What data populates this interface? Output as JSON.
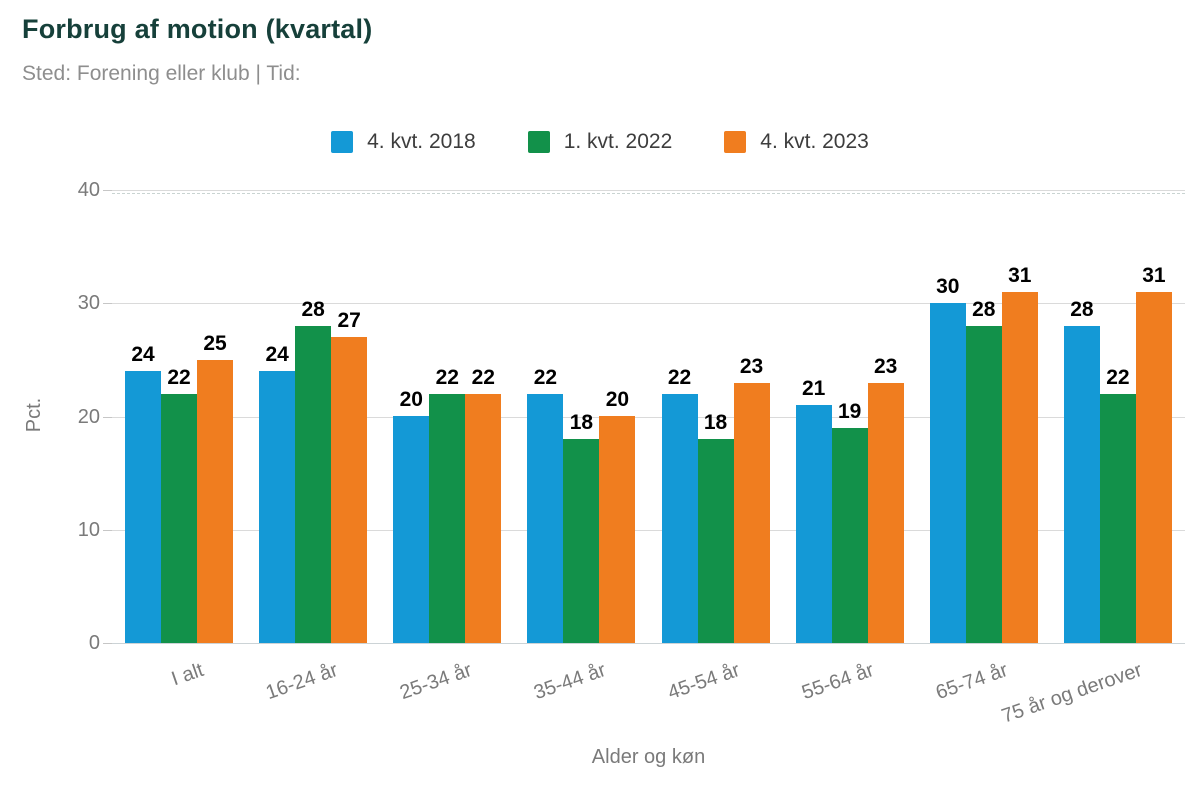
{
  "colors": {
    "title": "#16403a",
    "subtitle": "#8e8e8e",
    "axis_text": "#7a7a7a",
    "value_label": "#000000",
    "gridline": "#dadada",
    "series_blue": "#1499d6",
    "series_green": "#12914a",
    "series_orange": "#f07d1f"
  },
  "chart_data": {
    "type": "bar",
    "title": "Forbrug af motion (kvartal)",
    "subtitle": "Sted: Forening eller klub | Tid:",
    "categories": [
      "I alt",
      "16-24 år",
      "25-34 år",
      "35-44 år",
      "45-54 år",
      "55-64 år",
      "65-74 år",
      "75 år og derover"
    ],
    "series": [
      {
        "name": "4. kvt. 2018",
        "color": "#1499d6",
        "values": [
          24,
          24,
          20,
          22,
          22,
          21,
          30,
          28
        ]
      },
      {
        "name": "1. kvt. 2022",
        "color": "#12914a",
        "values": [
          22,
          28,
          22,
          18,
          18,
          19,
          28,
          22
        ]
      },
      {
        "name": "4. kvt. 2023",
        "color": "#f07d1f",
        "values": [
          25,
          27,
          22,
          20,
          23,
          23,
          31,
          31
        ]
      }
    ],
    "xlabel": "Alder og køn",
    "ylabel": "Pct.",
    "ylim": [
      0,
      40
    ],
    "yticks": [
      0,
      10,
      20,
      30,
      40
    ],
    "legend_position": "top",
    "grid": true,
    "value_labels": true
  }
}
